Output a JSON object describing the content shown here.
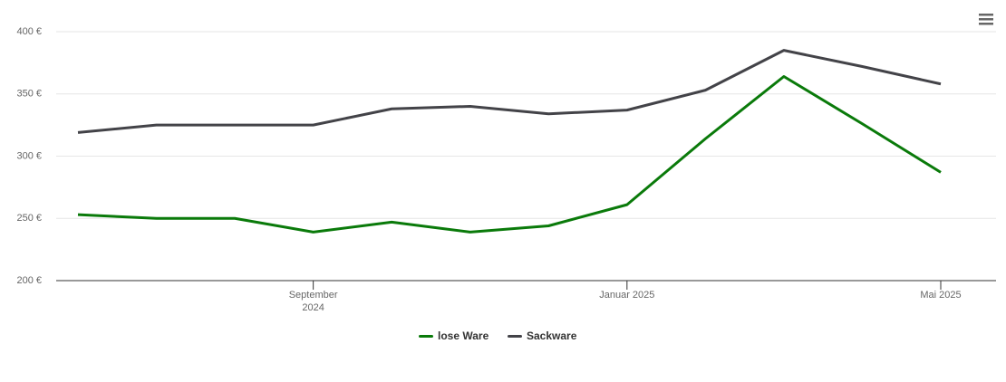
{
  "chart_data": {
    "type": "line",
    "x": [
      "2024-06",
      "2024-07",
      "2024-08",
      "2024-09",
      "2024-10",
      "2024-11",
      "2024-12",
      "2025-01",
      "2025-02",
      "2025-03",
      "2025-04",
      "2025-05"
    ],
    "series": [
      {
        "name": "lose Ware",
        "color": "#0a7a0a",
        "values": [
          253,
          250,
          250,
          239,
          247,
          239,
          244,
          261,
          314,
          364,
          326,
          287
        ]
      },
      {
        "name": "Sackware",
        "color": "#434348",
        "values": [
          319,
          325,
          325,
          325,
          338,
          340,
          334,
          337,
          353,
          385,
          372,
          358
        ]
      }
    ],
    "ylim": [
      200,
      400
    ],
    "yticks": [
      {
        "value": 200,
        "label": "200 €"
      },
      {
        "value": 250,
        "label": "250 €"
      },
      {
        "value": 300,
        "label": "300 €"
      },
      {
        "value": 350,
        "label": "350 €"
      },
      {
        "value": 400,
        "label": "400 €"
      }
    ],
    "xticks": [
      {
        "value": "2024-09",
        "label": "September 2024"
      },
      {
        "value": "2025-01",
        "label": "Januar 2025"
      },
      {
        "value": "2025-05",
        "label": "Mai 2025"
      }
    ],
    "grid": true,
    "legend": "bottom"
  }
}
